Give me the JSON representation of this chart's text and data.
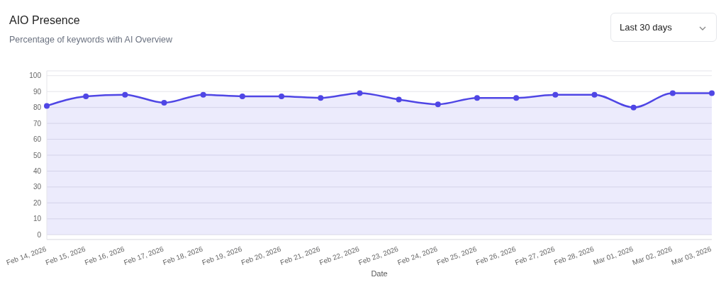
{
  "chart_data": {
    "type": "area",
    "title": "AIO Presence",
    "subtitle": "Percentage of keywords with AI Overview",
    "xlabel": "Date",
    "categories": [
      "Feb 14, 2026",
      "Feb 15, 2026",
      "Feb 16, 2026",
      "Feb 17, 2026",
      "Feb 18, 2026",
      "Feb 19, 2026",
      "Feb 20, 2026",
      "Feb 21, 2026",
      "Feb 22, 2026",
      "Feb 23, 2026",
      "Feb 24, 2026",
      "Feb 25, 2026",
      "Feb 26, 2026",
      "Feb 27, 2026",
      "Feb 28, 2026",
      "Mar 01, 2026",
      "Mar 02, 2026",
      "Mar 03, 2026"
    ],
    "series": [
      {
        "color": "#4f46e5",
        "values": [
          81,
          87,
          88,
          83,
          88,
          87,
          87,
          86,
          89,
          85,
          82,
          86,
          86,
          88,
          88,
          80,
          89,
          89
        ]
      }
    ],
    "ylim": [
      -3,
      103
    ],
    "yticks": [
      0,
      10,
      20,
      30,
      40,
      50,
      60,
      70,
      80,
      90,
      100
    ],
    "grid": "y",
    "marker": "circle",
    "line_style": "solid",
    "annotations": [
      "Last 30 days"
    ]
  }
}
